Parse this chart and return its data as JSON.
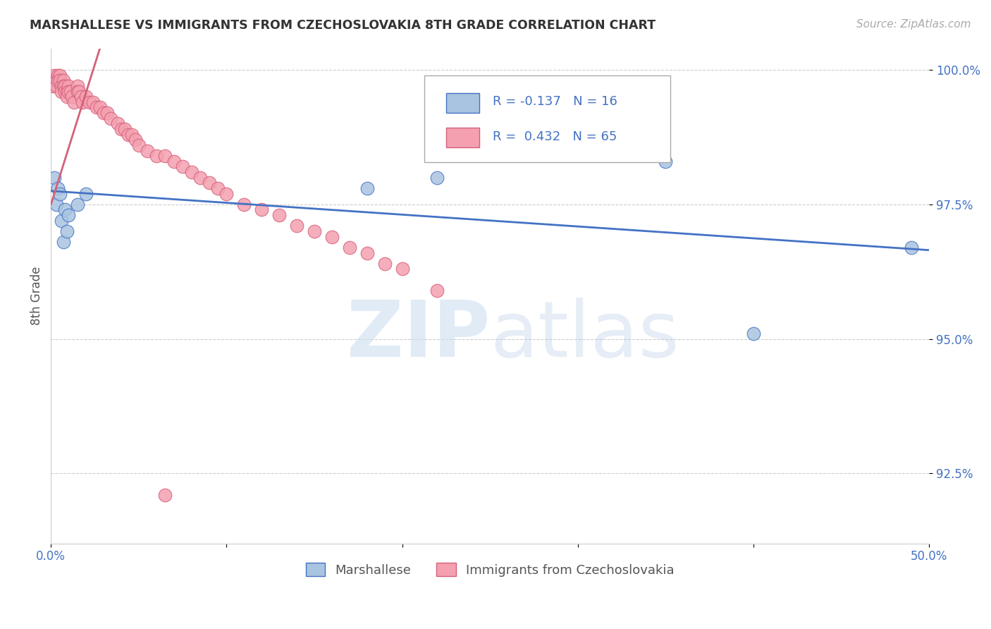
{
  "title": "MARSHALLESE VS IMMIGRANTS FROM CZECHOSLOVAKIA 8TH GRADE CORRELATION CHART",
  "source": "Source: ZipAtlas.com",
  "ylabel": "8th Grade",
  "xlim": [
    0.0,
    0.5
  ],
  "ylim": [
    0.912,
    1.004
  ],
  "xticks": [
    0.0,
    0.1,
    0.2,
    0.3,
    0.4,
    0.5
  ],
  "xticklabels": [
    "0.0%",
    "",
    "",
    "",
    "",
    "50.0%"
  ],
  "yticks": [
    0.925,
    0.95,
    0.975,
    1.0
  ],
  "yticklabels": [
    "92.5%",
    "95.0%",
    "97.5%",
    "100.0%"
  ],
  "blue_R": -0.137,
  "blue_N": 16,
  "pink_R": 0.432,
  "pink_N": 65,
  "blue_color": "#a8c4e0",
  "pink_color": "#f4a0b0",
  "blue_line_color": "#4472c4",
  "pink_line_color": "#d4607a",
  "legend_text_color": "#4472c4",
  "blue_scatter_x": [
    0.002,
    0.003,
    0.004,
    0.005,
    0.006,
    0.007,
    0.008,
    0.009,
    0.01,
    0.015,
    0.02,
    0.18,
    0.22,
    0.35,
    0.49,
    0.4
  ],
  "blue_scatter_y": [
    0.98,
    0.975,
    0.978,
    0.977,
    0.972,
    0.968,
    0.974,
    0.97,
    0.973,
    0.975,
    0.977,
    0.978,
    0.98,
    0.983,
    0.967,
    0.951
  ],
  "pink_scatter_x": [
    0.001,
    0.001,
    0.002,
    0.002,
    0.003,
    0.003,
    0.004,
    0.004,
    0.005,
    0.005,
    0.006,
    0.006,
    0.007,
    0.007,
    0.008,
    0.008,
    0.009,
    0.009,
    0.01,
    0.01,
    0.011,
    0.012,
    0.013,
    0.015,
    0.015,
    0.016,
    0.017,
    0.018,
    0.02,
    0.022,
    0.024,
    0.026,
    0.028,
    0.03,
    0.032,
    0.034,
    0.038,
    0.04,
    0.042,
    0.044,
    0.046,
    0.048,
    0.05,
    0.055,
    0.06,
    0.065,
    0.07,
    0.075,
    0.08,
    0.085,
    0.09,
    0.095,
    0.1,
    0.11,
    0.12,
    0.13,
    0.14,
    0.15,
    0.16,
    0.17,
    0.18,
    0.19,
    0.2,
    0.22,
    0.065
  ],
  "pink_scatter_y": [
    0.998,
    0.997,
    0.999,
    0.998,
    0.998,
    0.997,
    0.999,
    0.998,
    0.999,
    0.998,
    0.997,
    0.996,
    0.998,
    0.997,
    0.997,
    0.996,
    0.996,
    0.995,
    0.997,
    0.996,
    0.996,
    0.995,
    0.994,
    0.997,
    0.996,
    0.996,
    0.995,
    0.994,
    0.995,
    0.994,
    0.994,
    0.993,
    0.993,
    0.992,
    0.992,
    0.991,
    0.99,
    0.989,
    0.989,
    0.988,
    0.988,
    0.987,
    0.986,
    0.985,
    0.984,
    0.984,
    0.983,
    0.982,
    0.981,
    0.98,
    0.979,
    0.978,
    0.977,
    0.975,
    0.974,
    0.973,
    0.971,
    0.97,
    0.969,
    0.967,
    0.966,
    0.964,
    0.963,
    0.959,
    0.921
  ]
}
